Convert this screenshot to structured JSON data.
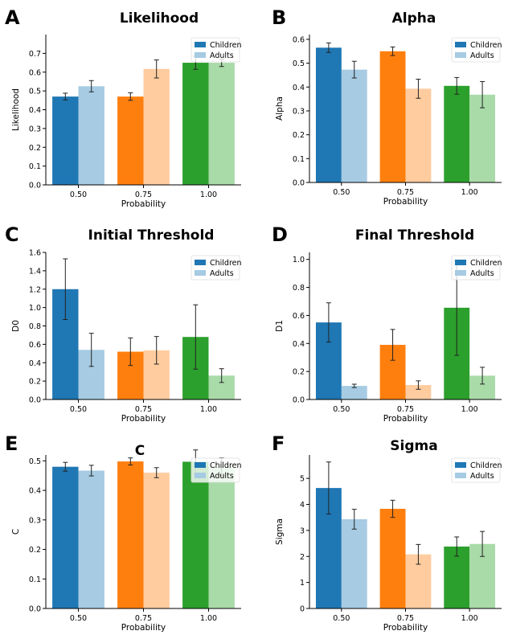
{
  "colors": {
    "children": [
      "#1f77b4",
      "#ff7f0e",
      "#2ca02c"
    ],
    "adults": [
      "#a6cbe3",
      "#ffcc9f",
      "#a9dba9"
    ],
    "legend_children": "#1f77b4",
    "legend_adults": "#a6cbe3",
    "error_bar": "#222222"
  },
  "chart_data": [
    {
      "type": "bar",
      "panel": "A",
      "title": "Likelihood",
      "xlabel": "Probability",
      "ylabel": "Likelihood",
      "categories": [
        "0.50",
        "0.75",
        "1.00"
      ],
      "ylim": [
        0,
        0.8
      ],
      "yticks": [
        "0.0",
        "0.1",
        "0.2",
        "0.3",
        "0.4",
        "0.5",
        "0.6",
        "0.7"
      ],
      "legend": "top-right",
      "grid": false,
      "series": [
        {
          "name": "Children",
          "values": [
            0.47,
            0.47,
            0.65
          ],
          "errors": [
            0.018,
            0.02,
            0.035
          ]
        },
        {
          "name": "Adults",
          "values": [
            0.525,
            0.617,
            0.65
          ],
          "errors": [
            0.03,
            0.048,
            0.02
          ]
        }
      ]
    },
    {
      "type": "bar",
      "panel": "B",
      "title": "Alpha",
      "xlabel": "Probability",
      "ylabel": "Alpha",
      "categories": [
        "0.50",
        "0.75",
        "1.00"
      ],
      "ylim": [
        0,
        0.62
      ],
      "yticks": [
        "0.0",
        "0.1",
        "0.2",
        "0.3",
        "0.4",
        "0.5",
        "0.6"
      ],
      "legend": "top-right",
      "grid": false,
      "series": [
        {
          "name": "Children",
          "values": [
            0.565,
            0.55,
            0.405
          ],
          "errors": [
            0.02,
            0.018,
            0.035
          ]
        },
        {
          "name": "Adults",
          "values": [
            0.473,
            0.393,
            0.368
          ],
          "errors": [
            0.035,
            0.04,
            0.055
          ]
        }
      ]
    },
    {
      "type": "bar",
      "panel": "C",
      "title": "Initial Threshold",
      "xlabel": "Probability",
      "ylabel": "D0",
      "categories": [
        "0.50",
        "0.75",
        "1.00"
      ],
      "ylim": [
        0,
        1.6
      ],
      "yticks": [
        "0.0",
        "0.2",
        "0.4",
        "0.6",
        "0.8",
        "1.0",
        "1.2",
        "1.4",
        "1.6"
      ],
      "legend": "top-right",
      "grid": false,
      "series": [
        {
          "name": "Children",
          "values": [
            1.2,
            0.52,
            0.68
          ],
          "errors": [
            0.33,
            0.15,
            0.35
          ]
        },
        {
          "name": "Adults",
          "values": [
            0.54,
            0.535,
            0.26
          ],
          "errors": [
            0.18,
            0.15,
            0.075
          ]
        }
      ]
    },
    {
      "type": "bar",
      "panel": "D",
      "title": "Final Threshold",
      "xlabel": "Probability",
      "ylabel": "D1",
      "categories": [
        "0.50",
        "0.75",
        "1.00"
      ],
      "ylim": [
        0,
        1.05
      ],
      "yticks": [
        "0.0",
        "0.2",
        "0.4",
        "0.6",
        "0.8",
        "1.0"
      ],
      "legend": "top-right",
      "grid": false,
      "series": [
        {
          "name": "Children",
          "values": [
            0.55,
            0.39,
            0.655
          ],
          "errors": [
            0.14,
            0.11,
            0.34
          ]
        },
        {
          "name": "Adults",
          "values": [
            0.097,
            0.103,
            0.17
          ],
          "errors": [
            0.012,
            0.03,
            0.06
          ]
        }
      ]
    },
    {
      "type": "bar",
      "panel": "E",
      "title": "C",
      "xlabel": "Probability",
      "ylabel": "C",
      "categories": [
        "0.50",
        "0.75",
        "1.00"
      ],
      "ylim": [
        0,
        0.52
      ],
      "yticks": [
        "0.0",
        "0.1",
        "0.2",
        "0.3",
        "0.4",
        "0.5"
      ],
      "legend": "top-right",
      "grid": false,
      "series": [
        {
          "name": "Children",
          "values": [
            0.48,
            0.498,
            0.497
          ],
          "errors": [
            0.015,
            0.012,
            0.04
          ]
        },
        {
          "name": "Adults",
          "values": [
            0.467,
            0.46,
            0.48
          ],
          "errors": [
            0.018,
            0.017,
            0.03
          ]
        }
      ]
    },
    {
      "type": "bar",
      "panel": "F",
      "title": "Sigma",
      "xlabel": "Probability",
      "ylabel": "Sigma",
      "categories": [
        "0.50",
        "0.75",
        "1.00"
      ],
      "ylim": [
        0,
        5.9
      ],
      "yticks": [
        "0",
        "1",
        "2",
        "3",
        "4",
        "5"
      ],
      "legend": "top-right",
      "grid": false,
      "series": [
        {
          "name": "Children",
          "values": [
            4.63,
            3.83,
            2.38
          ],
          "errors": [
            1.0,
            0.33,
            0.37
          ]
        },
        {
          "name": "Adults",
          "values": [
            3.43,
            2.08,
            2.48
          ],
          "errors": [
            0.38,
            0.38,
            0.48
          ]
        }
      ]
    }
  ]
}
